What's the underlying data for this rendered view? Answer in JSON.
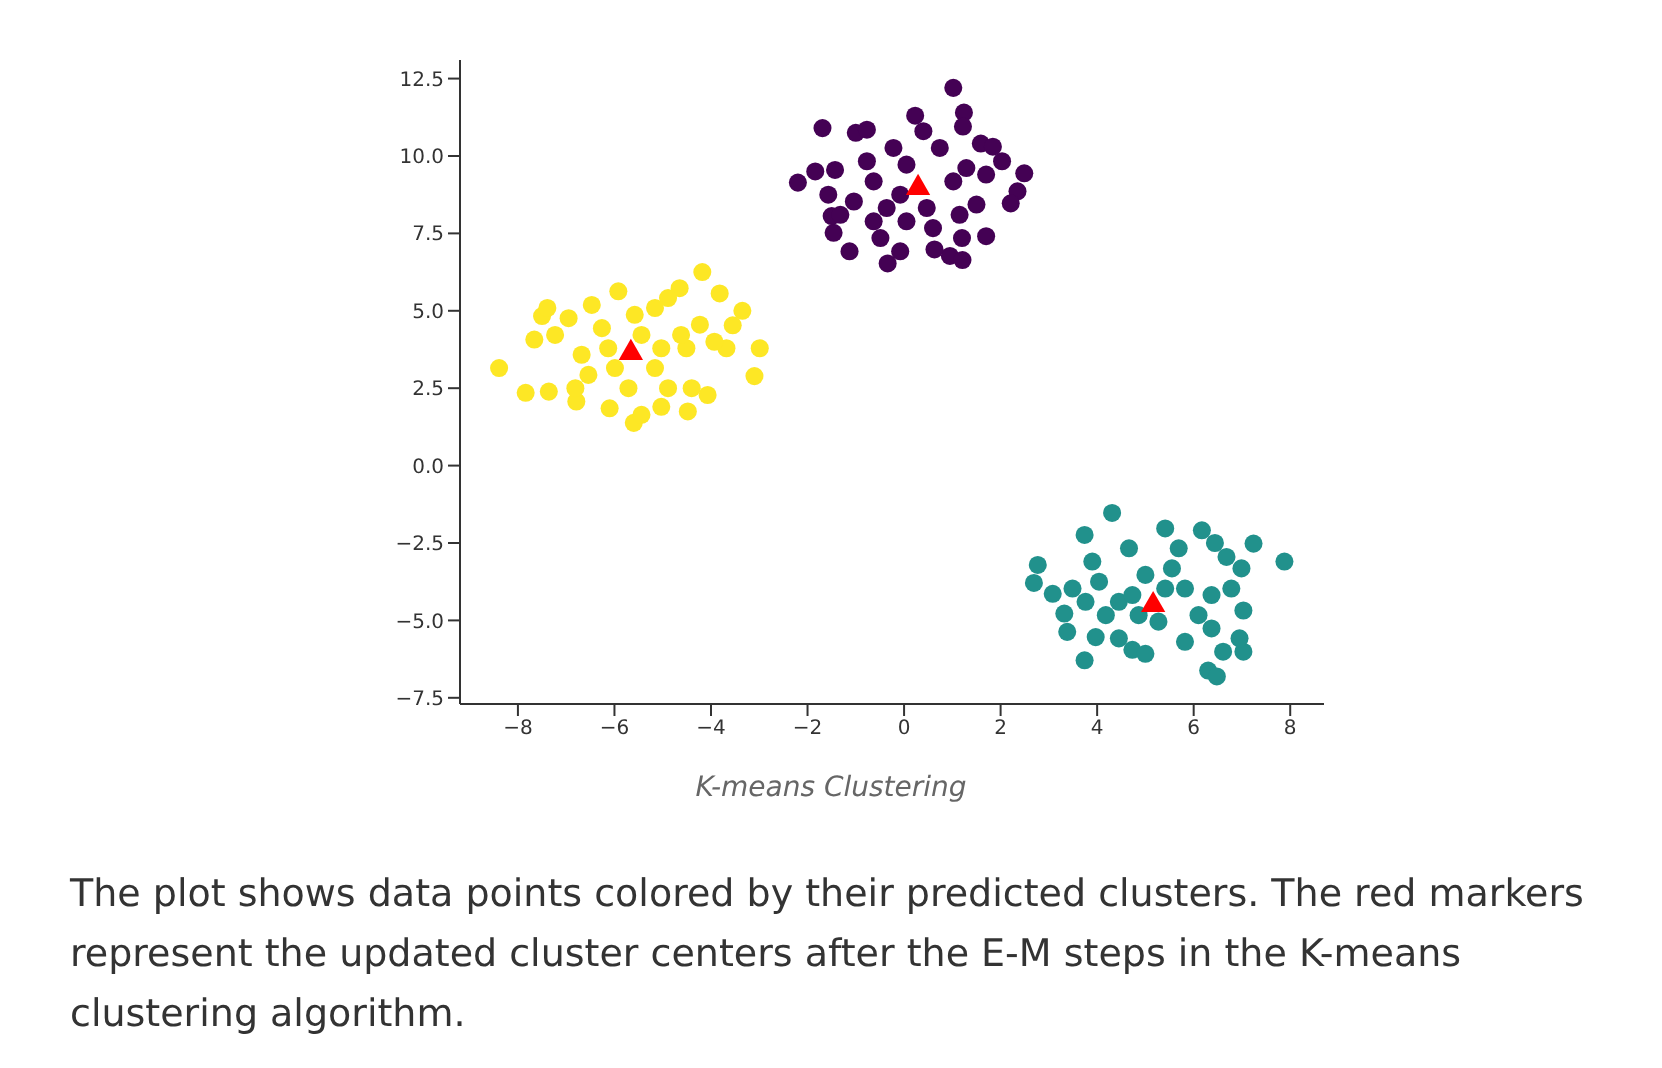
{
  "chart_data": {
    "type": "scatter",
    "xlim": [
      -9.2,
      8.7
    ],
    "ylim": [
      -7.7,
      13.1
    ],
    "xticks": [
      -8,
      -6,
      -4,
      -2,
      0,
      2,
      4,
      6,
      8
    ],
    "yticks": [
      -7.5,
      {
        "value": -5,
        "label": "−5.0"
      },
      -2.5,
      {
        "value": 0,
        "label": "0.0"
      },
      2.5,
      {
        "value": 5,
        "label": "5.0"
      },
      7.5,
      {
        "value": 10,
        "label": "10.0"
      },
      12.5
    ],
    "annotations": [
      "K-means Clustering",
      "The plot shows data points colored by their predicted clusters. The red markers represent the updated cluster centers after the E-M steps in the K-means clustering algorithm."
    ],
    "series": [
      {
        "marker": "circle",
        "color": "#440154",
        "x": [
          1.02,
          0.23,
          1.24,
          -1.69,
          -1.0,
          -0.77,
          1.22,
          1.59,
          1.84,
          2.03,
          2.49,
          2.35,
          2.21,
          1.7,
          1.2,
          0.95,
          1.21,
          0.63,
          -0.34,
          -0.08,
          -1.13,
          -1.46,
          -1.5,
          -2.2,
          -1.84,
          -1.43,
          -1.57,
          -0.49,
          1.5,
          -0.22,
          0.4,
          0.74,
          0.05,
          -0.63,
          -1.04,
          -0.36,
          0.47,
          1.02,
          1.29,
          1.7,
          0.05,
          0.6,
          -0.77,
          -1.32,
          1.15,
          -0.08,
          -0.63
        ],
        "values": [
          12.2,
          11.3,
          11.4,
          10.9,
          10.75,
          10.85,
          10.95,
          10.4,
          10.3,
          9.83,
          9.44,
          8.86,
          8.47,
          7.41,
          7.35,
          6.77,
          6.64,
          6.98,
          6.53,
          6.92,
          6.92,
          7.52,
          8.06,
          9.14,
          9.5,
          9.55,
          8.75,
          7.35,
          8.43,
          10.26,
          10.8,
          10.26,
          9.72,
          9.18,
          8.53,
          8.32,
          8.32,
          9.18,
          9.61,
          9.4,
          7.89,
          7.67,
          9.83,
          8.1,
          8.1,
          8.75,
          7.89
        ]
      },
      {
        "marker": "circle",
        "color": "#21918c",
        "x": [
          4.31,
          3.74,
          5.41,
          6.17,
          6.44,
          7.24,
          7.88,
          6.99,
          6.68,
          2.77,
          2.69,
          3.08,
          3.32,
          3.38,
          3.74,
          3.97,
          4.45,
          4.73,
          5.0,
          5.82,
          6.37,
          6.61,
          6.3,
          6.48,
          7.03,
          6.95,
          7.03,
          6.78,
          6.37,
          4.66,
          3.9,
          3.49,
          4.04,
          4.45,
          5.0,
          5.55,
          5.82,
          6.1,
          5.27,
          4.86,
          4.18,
          3.76,
          5.41,
          4.73,
          5.69
        ],
        "values": [
          -1.53,
          -2.24,
          -2.03,
          -2.09,
          -2.5,
          -2.52,
          -3.1,
          -3.32,
          -2.95,
          -3.21,
          -3.79,
          -4.14,
          -4.78,
          -5.37,
          -6.29,
          -5.54,
          -5.58,
          -5.95,
          -6.08,
          -5.69,
          -5.26,
          -6.01,
          -6.62,
          -6.81,
          -6.01,
          -5.58,
          -4.68,
          -3.97,
          -4.18,
          -2.67,
          -3.1,
          -3.97,
          -3.75,
          -4.4,
          -3.53,
          -3.32,
          -3.97,
          -4.83,
          -5.04,
          -4.83,
          -4.83,
          -4.4,
          -3.97,
          -4.18,
          -2.67
        ]
      },
      {
        "marker": "circle",
        "color": "#fde725",
        "x": [
          -8.39,
          -7.84,
          -7.36,
          -7.66,
          -7.5,
          -7.39,
          -6.79,
          -6.1,
          -5.6,
          -5.44,
          -5.03,
          -4.48,
          -4.07,
          -4.4,
          -3.1,
          -2.99,
          -3.35,
          -3.55,
          -3.82,
          -4.18,
          -4.65,
          -3.68,
          -3.93,
          -4.23,
          -4.51,
          -5.92,
          -6.47,
          -6.95,
          -7.23,
          -4.89,
          -5.16,
          -5.44,
          -6.26,
          -5.99,
          -6.54,
          -6.81,
          -5.16,
          -4.89,
          -5.71,
          -6.68,
          -4.62,
          -5.58,
          -6.13,
          -5.03
        ],
        "values": [
          3.15,
          2.35,
          2.39,
          4.07,
          4.83,
          5.09,
          2.07,
          1.85,
          1.38,
          1.64,
          1.9,
          1.75,
          2.28,
          2.5,
          2.89,
          3.79,
          5.0,
          4.53,
          5.56,
          6.25,
          5.73,
          3.79,
          4.0,
          4.55,
          3.79,
          5.63,
          5.19,
          4.76,
          4.22,
          5.41,
          5.09,
          4.22,
          4.44,
          3.15,
          2.93,
          2.5,
          3.15,
          2.5,
          2.5,
          3.58,
          4.22,
          4.87,
          3.79,
          3.79
        ]
      },
      {
        "marker": "triangle",
        "color": "#ff0000",
        "x": [
          0.29,
          -5.66,
          5.16
        ],
        "values": [
          8.97,
          3.64,
          -4.5
        ]
      }
    ]
  }
}
